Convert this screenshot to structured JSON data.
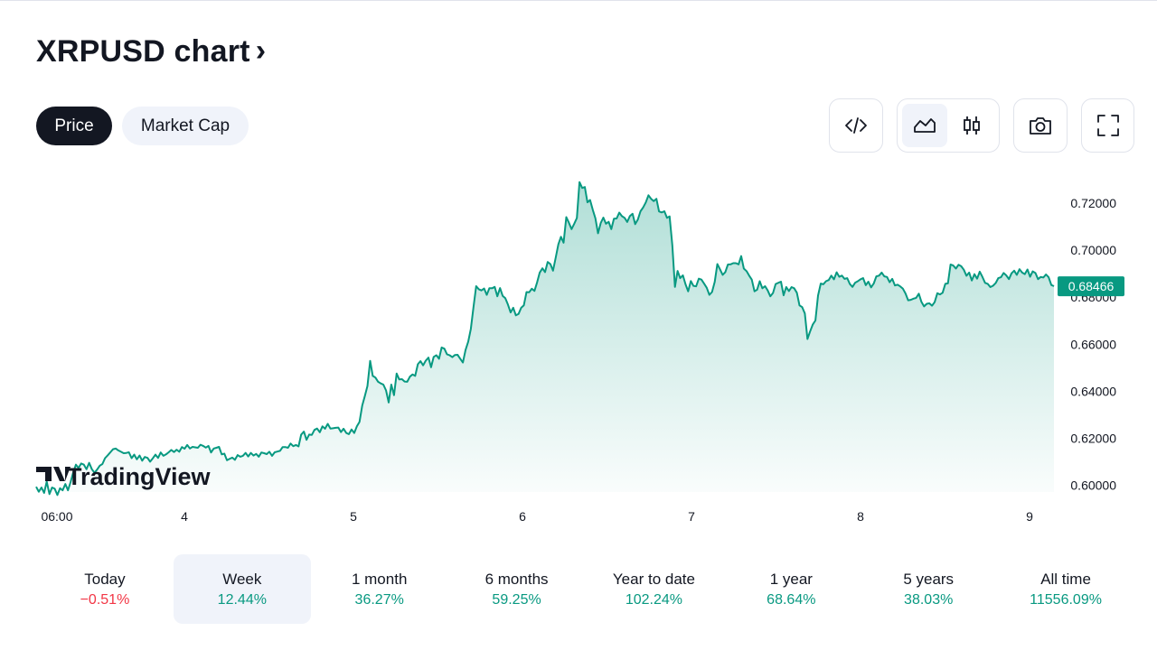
{
  "header": {
    "title": "XRPUSD chart",
    "chevron": "›"
  },
  "tabs": [
    {
      "label": "Price",
      "active": true
    },
    {
      "label": "Market Cap",
      "active": false
    }
  ],
  "toolbar": {
    "embed_icon": "code-icon",
    "area_icon": "area-chart-icon",
    "candle_icon": "candlestick-icon",
    "camera_icon": "camera-icon",
    "fullscreen_icon": "fullscreen-icon"
  },
  "colors": {
    "line": "#089981",
    "positive": "#089981",
    "negative": "#f23645",
    "dark": "#131722",
    "muted": "#f0f3fa"
  },
  "watermark": "TradingView",
  "chart_data": {
    "type": "area",
    "x_ticks": [
      "06:00",
      "4",
      "5",
      "6",
      "7",
      "8",
      "9"
    ],
    "y_ticks": [
      "0.72000",
      "0.70000",
      "0.68000",
      "0.66000",
      "0.64000",
      "0.62000",
      "0.60000"
    ],
    "ylim": [
      0.594,
      0.7335
    ],
    "current_price": "0.68466",
    "series": [
      {
        "values": [
          0.5993,
          0.5972,
          0.599,
          0.5967,
          0.6015,
          0.5962,
          0.599,
          0.5985,
          0.5958,
          0.5987,
          0.5978,
          0.6005,
          0.5978,
          0.6013,
          0.6056,
          0.6087,
          0.6073,
          0.6092,
          0.6087,
          0.6068,
          0.6095,
          0.6068,
          0.6053,
          0.6066,
          0.6083,
          0.609,
          0.6115,
          0.6127,
          0.614,
          0.6153,
          0.6156,
          0.6148,
          0.6142,
          0.6136,
          0.6137,
          0.614,
          0.6115,
          0.613,
          0.611,
          0.6126,
          0.6104,
          0.612,
          0.6116,
          0.61,
          0.6114,
          0.613,
          0.6116,
          0.6139,
          0.6125,
          0.6131,
          0.614,
          0.615,
          0.6141,
          0.6151,
          0.6142,
          0.6162,
          0.6155,
          0.6171,
          0.6156,
          0.6163,
          0.6161,
          0.6159,
          0.6172,
          0.6167,
          0.616,
          0.6167,
          0.6139,
          0.6156,
          0.6159,
          0.6163,
          0.6131,
          0.6134,
          0.6106,
          0.6112,
          0.6117,
          0.6108,
          0.6128,
          0.6121,
          0.6125,
          0.6137,
          0.6122,
          0.6137,
          0.6126,
          0.6133,
          0.6121,
          0.6139,
          0.6136,
          0.6132,
          0.6142,
          0.6125,
          0.614,
          0.6143,
          0.6146,
          0.6162,
          0.6162,
          0.6159,
          0.6177,
          0.6166,
          0.6171,
          0.6165,
          0.6215,
          0.6228,
          0.6193,
          0.6215,
          0.6214,
          0.6235,
          0.6241,
          0.6225,
          0.625,
          0.624,
          0.6261,
          0.6241,
          0.6242,
          0.6244,
          0.6245,
          0.6226,
          0.624,
          0.6222,
          0.6217,
          0.6237,
          0.6222,
          0.625,
          0.6269,
          0.6338,
          0.6379,
          0.6422,
          0.6529,
          0.6465,
          0.6458,
          0.644,
          0.6433,
          0.6428,
          0.6403,
          0.6352,
          0.6428,
          0.6383,
          0.6475,
          0.645,
          0.6451,
          0.6441,
          0.644,
          0.6462,
          0.6471,
          0.6465,
          0.6515,
          0.6528,
          0.651,
          0.653,
          0.6543,
          0.6502,
          0.6546,
          0.6553,
          0.6538,
          0.6586,
          0.6581,
          0.6557,
          0.6553,
          0.6545,
          0.6554,
          0.6555,
          0.6538,
          0.6522,
          0.6575,
          0.6611,
          0.6665,
          0.6757,
          0.6847,
          0.6834,
          0.6829,
          0.6837,
          0.681,
          0.6838,
          0.6838,
          0.6844,
          0.6804,
          0.6839,
          0.6806,
          0.6796,
          0.6769,
          0.6735,
          0.6755,
          0.6723,
          0.6729,
          0.6755,
          0.6765,
          0.6822,
          0.6821,
          0.6836,
          0.6827,
          0.6863,
          0.6905,
          0.6923,
          0.6907,
          0.695,
          0.6941,
          0.6913,
          0.6967,
          0.7025,
          0.7057,
          0.7032,
          0.7141,
          0.7117,
          0.709,
          0.7113,
          0.7137,
          0.729,
          0.7265,
          0.7269,
          0.7204,
          0.7214,
          0.7172,
          0.7136,
          0.7072,
          0.7116,
          0.7139,
          0.7113,
          0.7121,
          0.709,
          0.7134,
          0.7135,
          0.716,
          0.7145,
          0.7138,
          0.712,
          0.7145,
          0.7155,
          0.7111,
          0.713,
          0.7166,
          0.7182,
          0.7203,
          0.7234,
          0.7219,
          0.7209,
          0.7219,
          0.7165,
          0.7161,
          0.7166,
          0.7138,
          0.7144,
          0.7021,
          0.6844,
          0.6912,
          0.6881,
          0.6893,
          0.6855,
          0.6825,
          0.6869,
          0.6848,
          0.6846,
          0.6879,
          0.6875,
          0.6858,
          0.684,
          0.681,
          0.6822,
          0.6865,
          0.6941,
          0.6919,
          0.6895,
          0.6907,
          0.6939,
          0.694,
          0.6945,
          0.6945,
          0.694,
          0.6975,
          0.6922,
          0.6911,
          0.6892,
          0.6875,
          0.6825,
          0.6832,
          0.6868,
          0.6838,
          0.6847,
          0.6829,
          0.6804,
          0.6818,
          0.6856,
          0.6861,
          0.6866,
          0.6808,
          0.6843,
          0.6826,
          0.6843,
          0.6838,
          0.6819,
          0.6765,
          0.6758,
          0.6731,
          0.6622,
          0.6654,
          0.6684,
          0.6701,
          0.6807,
          0.6858,
          0.6855,
          0.6868,
          0.6873,
          0.6892,
          0.6876,
          0.6906,
          0.6887,
          0.6892,
          0.6878,
          0.6881,
          0.6856,
          0.6844,
          0.6862,
          0.6868,
          0.6876,
          0.6881,
          0.6851,
          0.6866,
          0.6842,
          0.6858,
          0.6889,
          0.6892,
          0.6905,
          0.6889,
          0.6886,
          0.6864,
          0.6878,
          0.685,
          0.6853,
          0.6846,
          0.6836,
          0.6816,
          0.6787,
          0.6789,
          0.6794,
          0.6797,
          0.6815,
          0.678,
          0.6761,
          0.6772,
          0.6774,
          0.6764,
          0.6779,
          0.6817,
          0.6812,
          0.6819,
          0.6857,
          0.6859,
          0.6939,
          0.6935,
          0.6922,
          0.6938,
          0.6932,
          0.6917,
          0.6891,
          0.6905,
          0.6871,
          0.6898,
          0.6879,
          0.6909,
          0.6887,
          0.6861,
          0.6857,
          0.6843,
          0.6849,
          0.686,
          0.6881,
          0.6885,
          0.6903,
          0.6893,
          0.6877,
          0.6902,
          0.6913,
          0.6895,
          0.6919,
          0.6905,
          0.6898,
          0.6918,
          0.6887,
          0.691,
          0.6903,
          0.6877,
          0.6886,
          0.6884,
          0.6897,
          0.6885,
          0.6852,
          0.6847
        ]
      }
    ]
  },
  "periods": [
    {
      "label": "Today",
      "value": "−0.51%",
      "trend": "neg",
      "selected": false
    },
    {
      "label": "Week",
      "value": "12.44%",
      "trend": "pos",
      "selected": true
    },
    {
      "label": "1 month",
      "value": "36.27%",
      "trend": "pos",
      "selected": false
    },
    {
      "label": "6 months",
      "value": "59.25%",
      "trend": "pos",
      "selected": false
    },
    {
      "label": "Year to date",
      "value": "102.24%",
      "trend": "pos",
      "selected": false
    },
    {
      "label": "1 year",
      "value": "68.64%",
      "trend": "pos",
      "selected": false
    },
    {
      "label": "5 years",
      "value": "38.03%",
      "trend": "pos",
      "selected": false
    },
    {
      "label": "All time",
      "value": "11556.09%",
      "trend": "pos",
      "selected": false
    }
  ]
}
